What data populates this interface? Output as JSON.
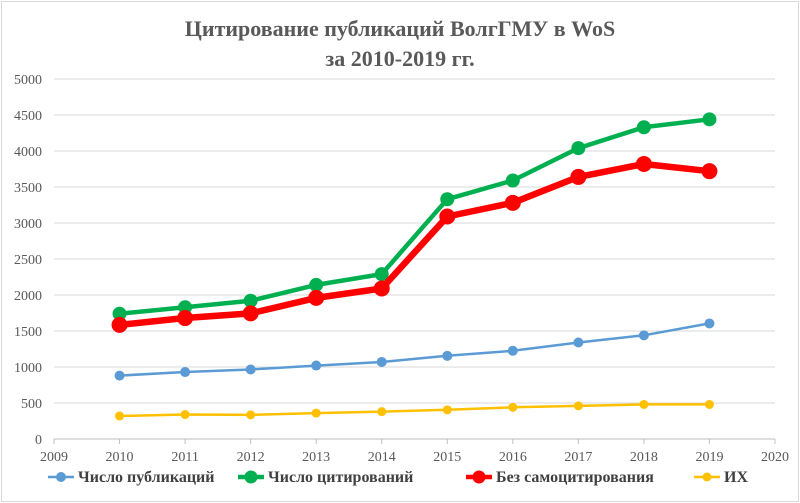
{
  "title_line1": "Цитирование публикаций ВолгГМУ в WoS",
  "title_line2": "за 2010-2019 гг.",
  "chart_data": {
    "type": "line",
    "x": [
      2010,
      2011,
      2012,
      2013,
      2014,
      2015,
      2016,
      2017,
      2018,
      2019
    ],
    "xlim": [
      2009,
      2020
    ],
    "ylim": [
      0,
      5000
    ],
    "x_ticks": [
      2009,
      2010,
      2011,
      2012,
      2013,
      2014,
      2015,
      2016,
      2017,
      2018,
      2019,
      2020
    ],
    "y_ticks": [
      0,
      500,
      1000,
      1500,
      2000,
      2500,
      3000,
      3500,
      4000,
      4500,
      5000
    ],
    "grid": "horizontal",
    "legend_position": "bottom",
    "series": [
      {
        "name": "Число публикаций",
        "color": "#5b9bd5",
        "values": [
          880,
          930,
          965,
          1020,
          1070,
          1155,
          1225,
          1340,
          1440,
          1605
        ]
      },
      {
        "name": "Число цитирований",
        "color": "#00b050",
        "values": [
          1740,
          1830,
          1920,
          2140,
          2290,
          3330,
          3590,
          4040,
          4330,
          4440
        ]
      },
      {
        "name": "Без самоцитирования",
        "color": "#ff0000",
        "values": [
          1585,
          1680,
          1745,
          1960,
          2090,
          3090,
          3280,
          3640,
          3820,
          3720
        ]
      },
      {
        "name": "ИХ",
        "color": "#ffc000",
        "values": [
          320,
          340,
          335,
          360,
          380,
          405,
          440,
          460,
          480,
          480
        ]
      }
    ]
  }
}
